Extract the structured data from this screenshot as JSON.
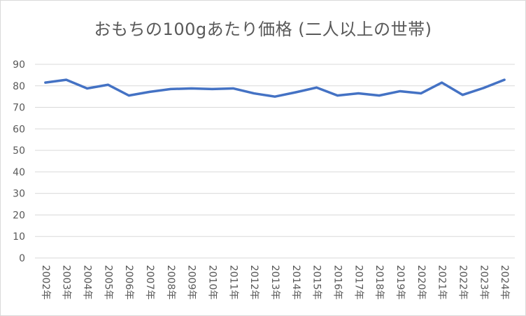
{
  "chart_data": {
    "type": "line",
    "title": "おもちの100gあたり価格 (二人以上の世帯)",
    "xlabel": "",
    "ylabel": "",
    "ylim": [
      0,
      90
    ],
    "yticks": [
      0,
      10,
      20,
      30,
      40,
      50,
      60,
      70,
      80,
      90
    ],
    "grid": true,
    "legend": "none",
    "categories": [
      "2002年",
      "2003年",
      "2004年",
      "2005年",
      "2006年",
      "2007年",
      "2008年",
      "2009年",
      "2010年",
      "2011年",
      "2012年",
      "2013年",
      "2014年",
      "2015年",
      "2016年",
      "2017年",
      "2018年",
      "2019年",
      "2020年",
      "2021年",
      "2022年",
      "2023年",
      "2024年"
    ],
    "series": [
      {
        "color": "#4472c4",
        "values": [
          81.5,
          82.8,
          78.8,
          80.5,
          75.5,
          77.2,
          78.5,
          78.8,
          78.5,
          78.8,
          76.5,
          75.0,
          77.0,
          79.2,
          75.5,
          76.5,
          75.5,
          77.5,
          76.5,
          81.5,
          75.8,
          79.0,
          82.8
        ]
      }
    ]
  }
}
